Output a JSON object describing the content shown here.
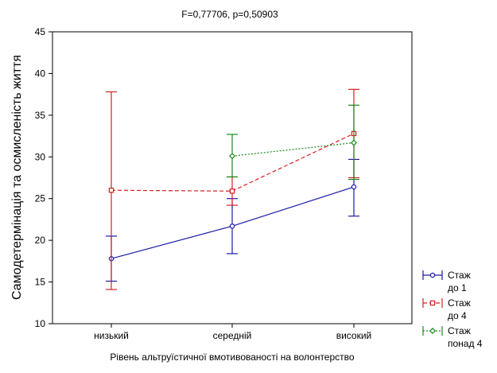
{
  "chart_data": {
    "type": "line",
    "title": "F=0,77706, p=0,50903",
    "xlabel": "Рівень альтруїстичної вмотивованості на волонтерство",
    "ylabel": "Самодетермінація та осмисленість життя",
    "categories": [
      "низький",
      "середній",
      "високий"
    ],
    "ylim": [
      10,
      45
    ],
    "yticks": [
      10,
      15,
      20,
      25,
      30,
      35,
      40,
      45
    ],
    "legend_position": "right",
    "grid": false,
    "series": [
      {
        "name_lines": [
          "Стаж",
          "до 1"
        ],
        "color": "#1a1aa8",
        "line_style": "solid",
        "marker": "circle",
        "points": [
          {
            "category": "низький",
            "mean": 17.8,
            "lower": 15.1,
            "upper": 20.5
          },
          {
            "category": "середній",
            "mean": 21.7,
            "lower": 18.4,
            "upper": 25.0
          },
          {
            "category": "високий",
            "mean": 26.4,
            "lower": 22.9,
            "upper": 29.7
          }
        ]
      },
      {
        "name_lines": [
          "Стаж",
          "до 4"
        ],
        "color": "#d42020",
        "line_style": "dashed",
        "marker": "square",
        "points": [
          {
            "category": "низький",
            "mean": 26.0,
            "lower": 14.1,
            "upper": 37.8
          },
          {
            "category": "середній",
            "mean": 25.9,
            "lower": 24.2,
            "upper": 27.6
          },
          {
            "category": "високий",
            "mean": 32.8,
            "lower": 27.5,
            "upper": 38.1
          }
        ]
      },
      {
        "name_lines": [
          "Стаж",
          "понад 4"
        ],
        "color": "#1a8a1a",
        "line_style": "dotted",
        "marker": "diamond",
        "points": [
          {
            "category": "середній",
            "mean": 30.1,
            "lower": 27.6,
            "upper": 32.7
          },
          {
            "category": "високий",
            "mean": 31.7,
            "lower": 27.3,
            "upper": 36.2
          }
        ]
      }
    ]
  }
}
